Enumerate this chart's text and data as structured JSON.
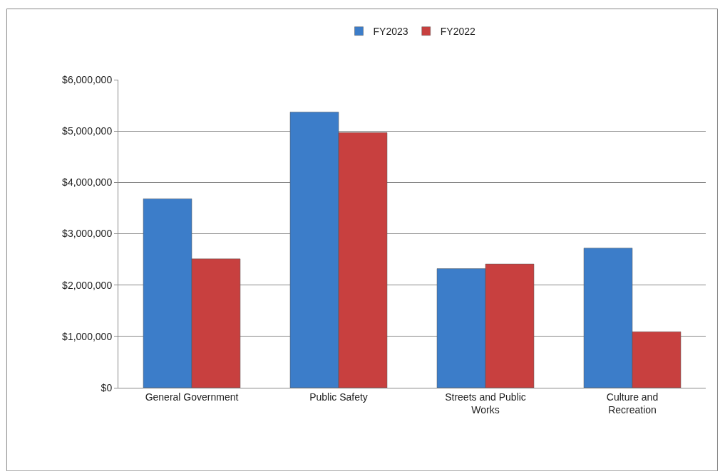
{
  "chart_data": {
    "type": "bar",
    "categories": [
      "General Government",
      "Public Safety",
      "Streets and Public Works",
      "Culture and Recreation"
    ],
    "series": [
      {
        "name": "FY2023",
        "color": "#3c7dc9",
        "values": [
          3680000,
          5370000,
          2320000,
          2720000
        ]
      },
      {
        "name": "FY2022",
        "color": "#c8403f",
        "values": [
          2510000,
          4970000,
          2410000,
          1090000
        ]
      }
    ],
    "ylim": [
      0,
      6000000
    ],
    "yticks": [
      {
        "value": 0,
        "label": "$0"
      },
      {
        "value": 1000000,
        "label": "$1,000,000"
      },
      {
        "value": 2000000,
        "label": "$2,000,000"
      },
      {
        "value": 3000000,
        "label": "$3,000,000"
      },
      {
        "value": 4000000,
        "label": "$4,000,000"
      },
      {
        "value": 5000000,
        "label": "$5,000,000"
      },
      {
        "value": 6000000,
        "label": "$6,000,000"
      }
    ],
    "grid": "y",
    "legend": "top"
  }
}
